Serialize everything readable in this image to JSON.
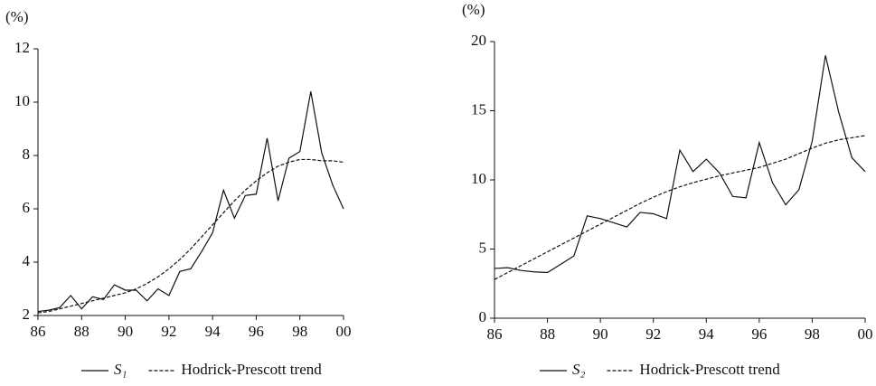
{
  "chart_data": [
    {
      "type": "line",
      "ylabel": "(%)",
      "x": [
        1986,
        1986.5,
        1987,
        1987.5,
        1988,
        1988.5,
        1989,
        1989.5,
        1990,
        1990.5,
        1991,
        1991.5,
        1992,
        1992.5,
        1993,
        1993.5,
        1994,
        1994.5,
        1995,
        1995.5,
        1996,
        1996.5,
        1997,
        1997.5,
        1998,
        1998.5,
        1999,
        1999.5,
        2000
      ],
      "xlim": [
        1986,
        2000
      ],
      "xticks": [
        {
          "value": 1986,
          "label": "86"
        },
        {
          "value": 1988,
          "label": "88"
        },
        {
          "value": 1990,
          "label": "90"
        },
        {
          "value": 1992,
          "label": "92"
        },
        {
          "value": 1994,
          "label": "94"
        },
        {
          "value": 1996,
          "label": "96"
        },
        {
          "value": 1998,
          "label": "98"
        },
        {
          "value": 2000,
          "label": "00"
        }
      ],
      "ylim": [
        2,
        12
      ],
      "yticks": [
        2,
        4,
        6,
        8,
        10,
        12
      ],
      "series": [
        {
          "name": "S₁",
          "color": "#111111",
          "linestyle": "solid",
          "values": [
            2.15,
            2.2,
            2.3,
            2.75,
            2.25,
            2.7,
            2.6,
            3.15,
            2.95,
            2.95,
            2.55,
            3.0,
            2.75,
            3.65,
            3.75,
            4.4,
            5.1,
            6.7,
            5.65,
            6.5,
            6.55,
            8.65,
            6.3,
            7.9,
            8.15,
            10.4,
            8.1,
            6.9,
            6.0
          ]
        },
        {
          "name": "Hodrick-Prescott trend",
          "color": "#111111",
          "linestyle": "dashed",
          "values": [
            2.1,
            2.15,
            2.25,
            2.35,
            2.45,
            2.55,
            2.65,
            2.75,
            2.85,
            3.0,
            3.2,
            3.45,
            3.75,
            4.1,
            4.5,
            4.95,
            5.4,
            5.85,
            6.3,
            6.7,
            7.05,
            7.35,
            7.6,
            7.75,
            7.85,
            7.85,
            7.8,
            7.8,
            7.75
          ]
        }
      ]
    },
    {
      "type": "line",
      "ylabel": "(%)",
      "x": [
        1986,
        1986.5,
        1987,
        1987.5,
        1988,
        1988.5,
        1989,
        1989.5,
        1990,
        1990.5,
        1991,
        1991.5,
        1992,
        1992.5,
        1993,
        1993.5,
        1994,
        1994.5,
        1995,
        1995.5,
        1996,
        1996.5,
        1997,
        1997.5,
        1998,
        1998.5,
        1999,
        1999.5,
        2000
      ],
      "xlim": [
        1986,
        2000
      ],
      "xticks": [
        {
          "value": 1986,
          "label": "86"
        },
        {
          "value": 1988,
          "label": "88"
        },
        {
          "value": 1990,
          "label": "90"
        },
        {
          "value": 1992,
          "label": "92"
        },
        {
          "value": 1994,
          "label": "94"
        },
        {
          "value": 1996,
          "label": "96"
        },
        {
          "value": 1998,
          "label": "98"
        },
        {
          "value": 2000,
          "label": "00"
        }
      ],
      "ylim": [
        0,
        20
      ],
      "yticks": [
        0,
        5,
        10,
        15,
        20
      ],
      "series": [
        {
          "name": "S₂",
          "color": "#111111",
          "linestyle": "solid",
          "values": [
            3.6,
            3.65,
            3.45,
            3.35,
            3.3,
            3.9,
            4.5,
            7.4,
            7.2,
            6.9,
            6.6,
            7.65,
            7.55,
            7.2,
            12.15,
            10.6,
            11.5,
            10.5,
            8.8,
            8.7,
            12.7,
            9.8,
            8.2,
            9.3,
            12.8,
            19.0,
            14.9,
            11.6,
            10.6
          ]
        },
        {
          "name": "Hodrick-Prescott trend",
          "color": "#111111",
          "linestyle": "dashed",
          "values": [
            2.8,
            3.3,
            3.8,
            4.3,
            4.8,
            5.3,
            5.8,
            6.3,
            6.8,
            7.3,
            7.8,
            8.3,
            8.75,
            9.15,
            9.5,
            9.8,
            10.05,
            10.3,
            10.5,
            10.7,
            10.9,
            11.2,
            11.5,
            11.9,
            12.3,
            12.65,
            12.9,
            13.05,
            13.2
          ]
        }
      ]
    }
  ]
}
